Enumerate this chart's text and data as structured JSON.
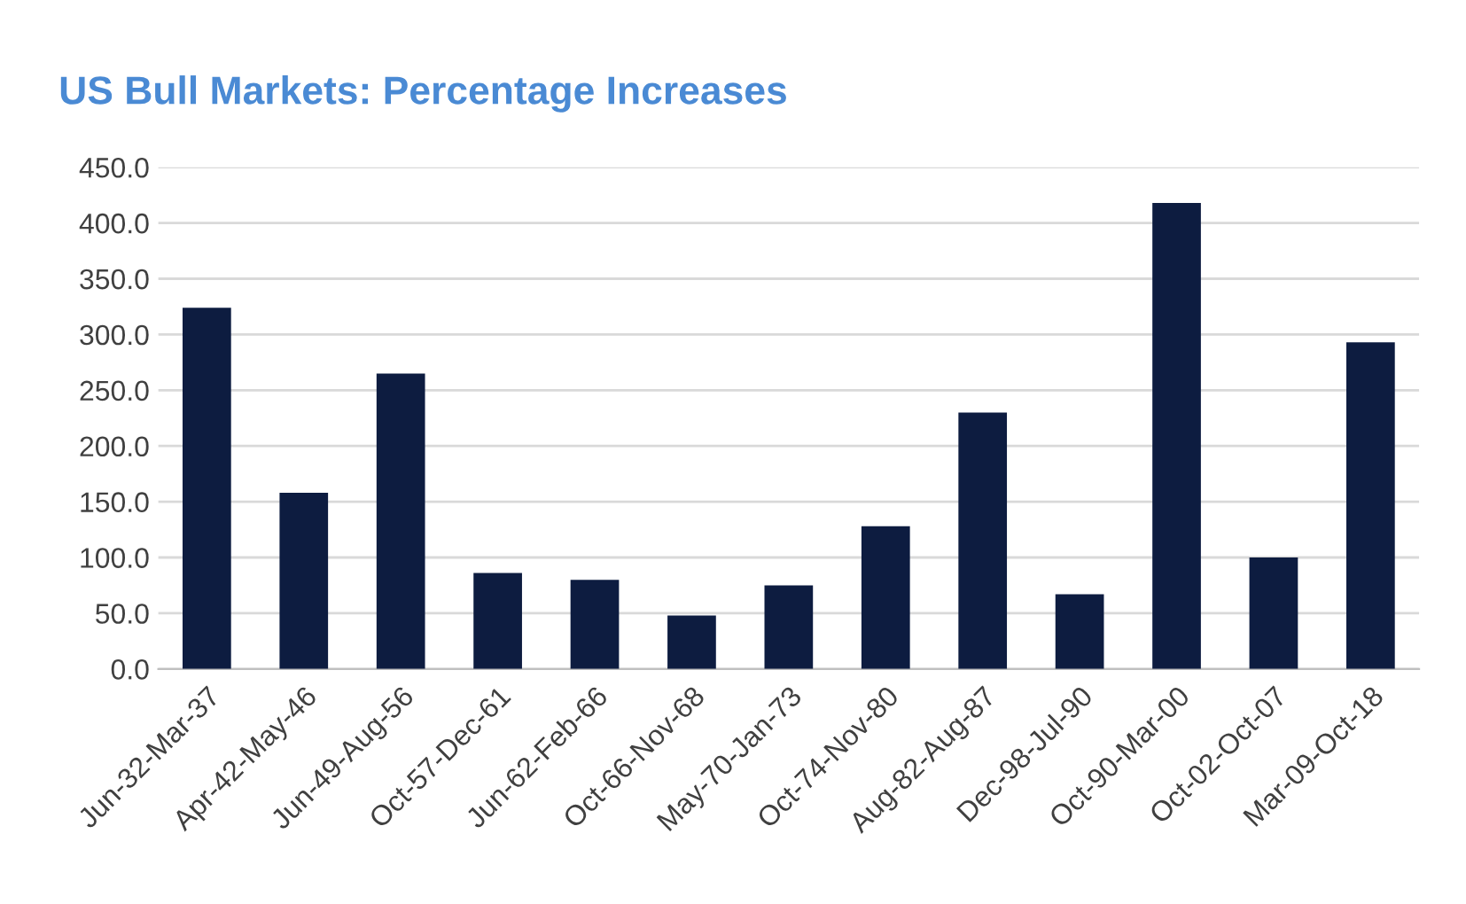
{
  "chart_data": {
    "type": "bar",
    "title": "US Bull Markets: Percentage Increases",
    "categories": [
      "Jun-32-Mar-37",
      "Apr-42-May-46",
      "Jun-49-Aug-56",
      "Oct-57-Dec-61",
      "Jun-62-Feb-66",
      "Oct-66-Nov-68",
      "May-70-Jan-73",
      "Oct-74-Nov-80",
      "Aug-82-Aug-87",
      "Dec-98-Jul-90",
      "Oct-90-Mar-00",
      "Oct-02-Oct-07",
      "Mar-09-Oct-18"
    ],
    "values": [
      324,
      158,
      265,
      86,
      80,
      48,
      75,
      128,
      230,
      67,
      418,
      100,
      293
    ],
    "color": "#0d1c40",
    "ylim": [
      0,
      450
    ],
    "yticks": [
      {
        "value": 0,
        "label": "0.0"
      },
      {
        "value": 50,
        "label": "50.0"
      },
      {
        "value": 100,
        "label": "100.0"
      },
      {
        "value": 150,
        "label": "150.0"
      },
      {
        "value": 200,
        "label": "200.0"
      },
      {
        "value": 250,
        "label": "250.0"
      },
      {
        "value": 300,
        "label": "300.0"
      },
      {
        "value": 350,
        "label": "350.0"
      },
      {
        "value": 400,
        "label": "400.0"
      },
      {
        "value": 450,
        "label": "450.0"
      }
    ],
    "grid": "y"
  }
}
